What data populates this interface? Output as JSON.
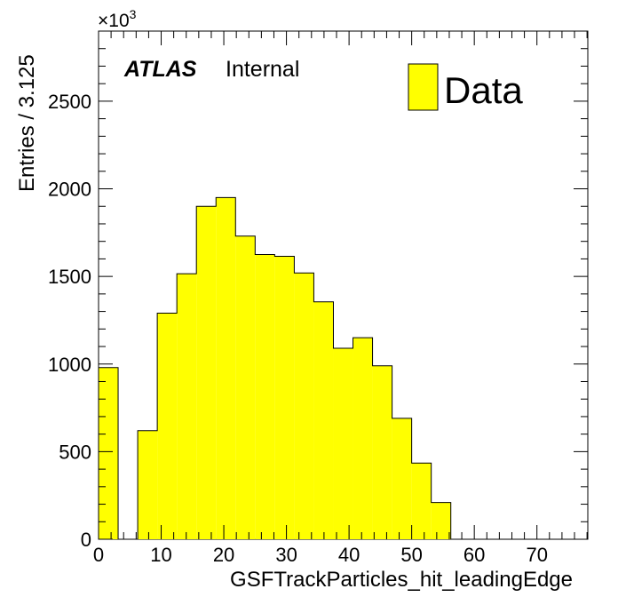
{
  "chart_data": {
    "type": "histogram",
    "xlabel": "GSFTrackParticles_hit_leadingEdge",
    "ylabel": "Entries / 3.125",
    "y_multiplier": "×10",
    "y_multiplier_exp": "3",
    "xlim": [
      0,
      78.125
    ],
    "ylim": [
      0,
      2900
    ],
    "bin_width": 3.125,
    "x_ticks": [
      0,
      10,
      20,
      30,
      40,
      50,
      60,
      70
    ],
    "y_ticks": [
      0,
      500,
      1000,
      1500,
      2000,
      2500
    ],
    "x_tick_labels": [
      "0",
      "10",
      "20",
      "30",
      "40",
      "50",
      "60",
      "70"
    ],
    "y_tick_labels": [
      "0",
      "500",
      "1000",
      "1500",
      "2000",
      "2500"
    ],
    "bins_low_edge": [
      0,
      3.125,
      6.25,
      9.375,
      12.5,
      15.625,
      18.75,
      21.875,
      25,
      28.125,
      31.25,
      34.375,
      37.5,
      40.625,
      43.75,
      46.875,
      50,
      53.125,
      56.25,
      59.375,
      62.5,
      65.625,
      68.75,
      71.875,
      75
    ],
    "series": [
      {
        "name": "Data",
        "color": "#ffff00",
        "values": [
          980,
          0,
          620,
          1290,
          1515,
          1900,
          1950,
          1730,
          1625,
          1615,
          1520,
          1355,
          1090,
          1150,
          990,
          690,
          435,
          210,
          0,
          0,
          0,
          0,
          0,
          0,
          0
        ]
      }
    ],
    "legend": {
      "position": "top-right",
      "label": "Data"
    },
    "annotation": {
      "bold": "ATLAS",
      "normal": "Internal"
    },
    "grid": false
  }
}
